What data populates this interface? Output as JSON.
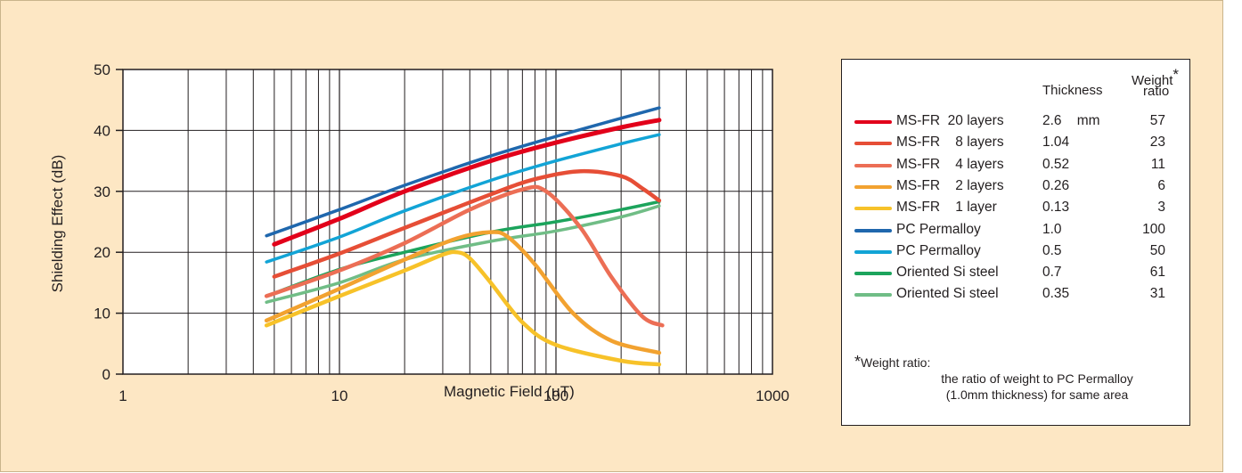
{
  "chart_data": {
    "type": "line",
    "title": "",
    "xlabel": "Magnetic Field  (μT)",
    "ylabel": "Shielding Effect  (dB)",
    "x_scale": "log",
    "xlim": [
      1,
      1000
    ],
    "ylim": [
      0,
      50
    ],
    "x_ticks": [
      "1",
      "10",
      "100",
      "1000"
    ],
    "y_ticks": [
      "0",
      "10",
      "20",
      "30",
      "40",
      "50"
    ],
    "grid": true,
    "legend_position": "right",
    "series": [
      {
        "name": "MS-FR  20 layers",
        "color": "#e2001a",
        "width": 5,
        "points": [
          [
            5,
            21.3
          ],
          [
            10,
            25.5
          ],
          [
            20,
            30
          ],
          [
            50,
            35
          ],
          [
            100,
            38
          ],
          [
            200,
            40.5
          ],
          [
            300,
            41.7
          ]
        ]
      },
      {
        "name": "MS-FR  8 layers",
        "color": "#e64e36",
        "width": 4.5,
        "points": [
          [
            5,
            16
          ],
          [
            10,
            19.8
          ],
          [
            20,
            24
          ],
          [
            50,
            29.5
          ],
          [
            80,
            32
          ],
          [
            130,
            33.3
          ],
          [
            200,
            32.5
          ],
          [
            250,
            30.5
          ],
          [
            300,
            28.5
          ]
        ]
      },
      {
        "name": "MS-FR  4 layers",
        "color": "#ec6e55",
        "width": 4.5,
        "points": [
          [
            4.6,
            12.8
          ],
          [
            10,
            17
          ],
          [
            20,
            21.5
          ],
          [
            40,
            27
          ],
          [
            70,
            30.3
          ],
          [
            90,
            30
          ],
          [
            130,
            24
          ],
          [
            180,
            16
          ],
          [
            250,
            9.5
          ],
          [
            310,
            8
          ]
        ]
      },
      {
        "name": "MS-FR  2 layers",
        "color": "#f2a230",
        "width": 4.5,
        "points": [
          [
            4.6,
            8.8
          ],
          [
            10,
            14
          ],
          [
            20,
            18.8
          ],
          [
            35,
            22.3
          ],
          [
            50,
            23.3
          ],
          [
            60,
            22.5
          ],
          [
            80,
            18
          ],
          [
            120,
            10
          ],
          [
            180,
            5.5
          ],
          [
            300,
            3.5
          ]
        ]
      },
      {
        "name": "MS-FR  1 layer",
        "color": "#f7c229",
        "width": 4.5,
        "points": [
          [
            4.6,
            8
          ],
          [
            10,
            12.8
          ],
          [
            20,
            17
          ],
          [
            30,
            19.6
          ],
          [
            35,
            20
          ],
          [
            40,
            19
          ],
          [
            50,
            15
          ],
          [
            70,
            8.5
          ],
          [
            100,
            4.8
          ],
          [
            200,
            2.2
          ],
          [
            300,
            1.6
          ]
        ]
      },
      {
        "name": "PC Permalloy",
        "color": "#1f67ad",
        "width": 3.5,
        "points": [
          [
            4.6,
            22.7
          ],
          [
            10,
            27
          ],
          [
            20,
            31
          ],
          [
            50,
            35.8
          ],
          [
            100,
            39
          ],
          [
            200,
            42
          ],
          [
            300,
            43.7
          ]
        ]
      },
      {
        "name": "PC Permalloy",
        "color": "#12a4d6",
        "width": 3.5,
        "points": [
          [
            4.6,
            18.4
          ],
          [
            10,
            22.5
          ],
          [
            20,
            26.8
          ],
          [
            50,
            31.8
          ],
          [
            100,
            35
          ],
          [
            200,
            37.8
          ],
          [
            300,
            39.3
          ]
        ]
      },
      {
        "name": "Oriented Si steel",
        "color": "#1ca45c",
        "width": 3.5,
        "points": [
          [
            4.6,
            12.8
          ],
          [
            10,
            17.2
          ],
          [
            20,
            20
          ],
          [
            50,
            23.3
          ],
          [
            100,
            25
          ],
          [
            200,
            27
          ],
          [
            300,
            28.3
          ]
        ]
      },
      {
        "name": "Oriented Si steel",
        "color": "#70bd86",
        "width": 3.5,
        "points": [
          [
            4.6,
            11.8
          ],
          [
            10,
            15
          ],
          [
            20,
            18.8
          ],
          [
            50,
            21.8
          ],
          [
            100,
            23.5
          ],
          [
            200,
            25.8
          ],
          [
            300,
            27.6
          ]
        ]
      }
    ]
  },
  "legend": {
    "header_thickness": "Thickness",
    "header_weight": "Weight",
    "header_star": "*",
    "header_ratio": "ratio",
    "rows": [
      {
        "name": "MS-FR  20 layers",
        "thickness": "2.6    mm",
        "ratio": "57",
        "color": "#e2001a"
      },
      {
        "name": "MS-FR    8 layers",
        "thickness": "1.04",
        "ratio": "23",
        "color": "#e64e36"
      },
      {
        "name": "MS-FR    4 layers",
        "thickness": "0.52",
        "ratio": "11",
        "color": "#ec6e55"
      },
      {
        "name": "MS-FR    2 layers",
        "thickness": "0.26",
        "ratio": "6",
        "color": "#f2a230"
      },
      {
        "name": "MS-FR    1 layer",
        "thickness": "0.13",
        "ratio": "3",
        "color": "#f7c229"
      },
      {
        "name": "PC Permalloy",
        "thickness": "1.0",
        "ratio": "100",
        "color": "#1f67ad"
      },
      {
        "name": "PC Permalloy",
        "thickness": "0.5",
        "ratio": "50",
        "color": "#12a4d6"
      },
      {
        "name": "Oriented Si steel",
        "thickness": "0.7",
        "ratio": "61",
        "color": "#1ca45c"
      },
      {
        "name": "Oriented Si steel",
        "thickness": "0.35",
        "ratio": "31",
        "color": "#70bd86"
      }
    ],
    "footnote_star": "*",
    "footnote_title": "Weight ratio:",
    "footnote_line1": "the ratio of weight to PC Permalloy",
    "footnote_line2": "(1.0mm thickness) for same area"
  }
}
